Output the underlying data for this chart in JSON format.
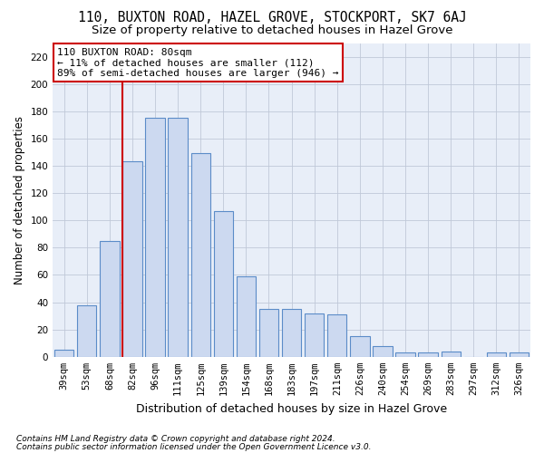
{
  "title1": "110, BUXTON ROAD, HAZEL GROVE, STOCKPORT, SK7 6AJ",
  "title2": "Size of property relative to detached houses in Hazel Grove",
  "xlabel": "Distribution of detached houses by size in Hazel Grove",
  "ylabel": "Number of detached properties",
  "footnote1": "Contains HM Land Registry data © Crown copyright and database right 2024.",
  "footnote2": "Contains public sector information licensed under the Open Government Licence v3.0.",
  "categories": [
    "39sqm",
    "53sqm",
    "68sqm",
    "82sqm",
    "96sqm",
    "111sqm",
    "125sqm",
    "139sqm",
    "154sqm",
    "168sqm",
    "183sqm",
    "197sqm",
    "211sqm",
    "226sqm",
    "240sqm",
    "254sqm",
    "269sqm",
    "283sqm",
    "297sqm",
    "312sqm",
    "326sqm"
  ],
  "values": [
    5,
    38,
    85,
    143,
    175,
    175,
    149,
    107,
    59,
    35,
    35,
    32,
    31,
    15,
    8,
    3,
    3,
    4,
    0,
    3,
    3
  ],
  "bar_color": "#ccd9f0",
  "bar_edge_color": "#5b8cc8",
  "vline_color": "#cc0000",
  "annotation_line1": "110 BUXTON ROAD: 80sqm",
  "annotation_line2": "← 11% of detached houses are smaller (112)",
  "annotation_line3": "89% of semi-detached houses are larger (946) →",
  "ylim": [
    0,
    230
  ],
  "yticks": [
    0,
    20,
    40,
    60,
    80,
    100,
    120,
    140,
    160,
    180,
    200,
    220
  ],
  "bg_color": "#ffffff",
  "plot_bg_color": "#e8eef8",
  "grid_color": "#c0c8d8",
  "title_fontsize": 10.5,
  "subtitle_fontsize": 9.5,
  "ylabel_fontsize": 8.5,
  "xlabel_fontsize": 9,
  "tick_fontsize": 7.5,
  "annot_fontsize": 8,
  "footnote_fontsize": 6.5
}
